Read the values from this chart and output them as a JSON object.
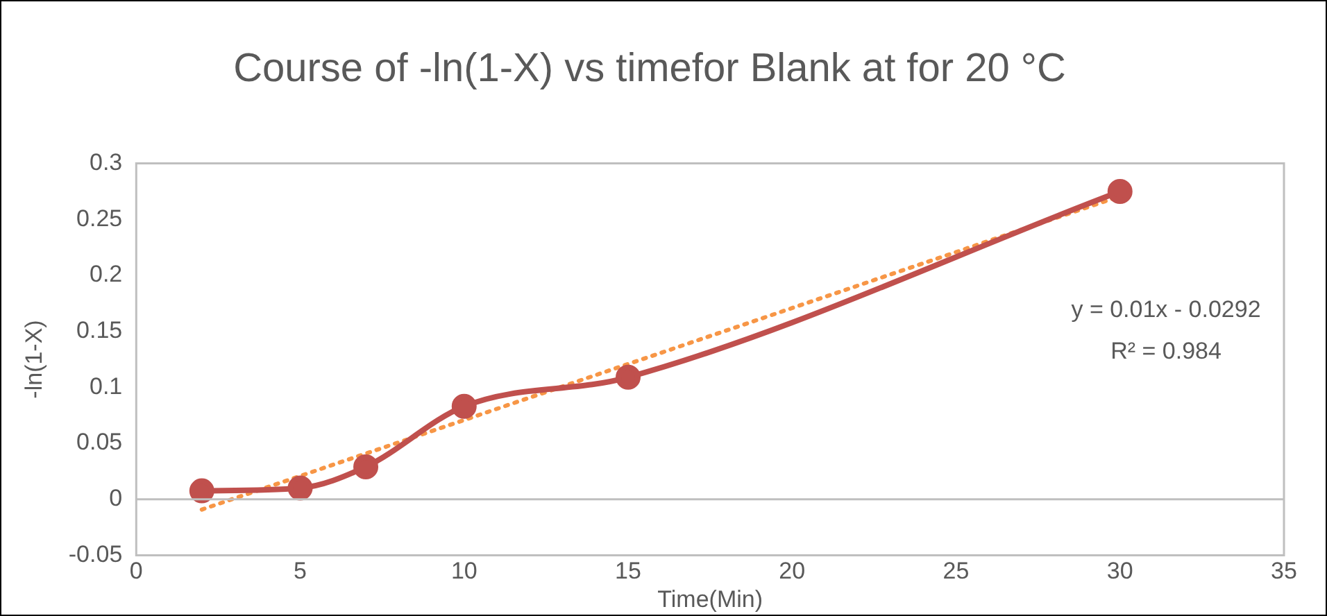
{
  "chart_data": {
    "type": "line",
    "title": "Course of -ln(1-X) vs timefor Blank at for 20 °C",
    "xlabel": "Time(Min)",
    "ylabel": "-ln(1-X)",
    "x": [
      2,
      5,
      7,
      10,
      15,
      30
    ],
    "series": [
      {
        "color": "#c0504d",
        "values": [
          0.0075,
          0.01,
          0.029,
          0.083,
          0.109,
          0.275
        ],
        "marker": "circle",
        "line_style": "solid"
      },
      {
        "type": "line",
        "color": "#f79646",
        "x": [
          2,
          30
        ],
        "values": [
          -0.0092,
          0.2708
        ],
        "marker": "none",
        "line_style": "dotted"
      }
    ],
    "xlim": [
      0,
      35
    ],
    "xticks": [
      0,
      5,
      10,
      15,
      20,
      25,
      30,
      35
    ],
    "ylim": [
      -0.05,
      0.3
    ],
    "yticks": [
      -0.05,
      0,
      0.05,
      0.1,
      0.15,
      0.2,
      0.25,
      0.3
    ],
    "grid": false,
    "legend": false,
    "ref_lines": [
      {
        "axis": "y",
        "value": 0,
        "color": "#bfbfbf"
      }
    ],
    "annotations": [
      "y = 0.01x - 0.0292",
      "R² = 0.984"
    ]
  }
}
